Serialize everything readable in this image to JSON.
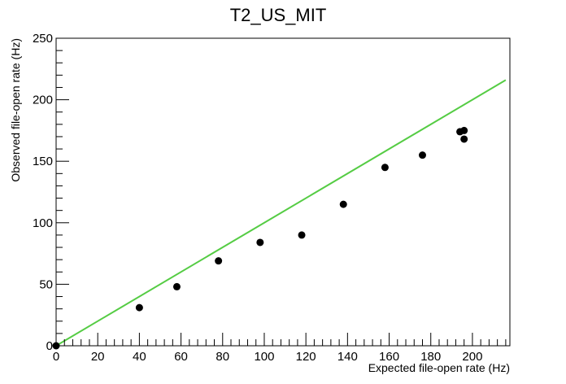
{
  "chart_data": {
    "type": "scatter",
    "title": "T2_US_MIT",
    "xlabel": "Expected file-open rate (Hz)",
    "ylabel": "Observed file-open rate (Hz)",
    "xlim": [
      0,
      218
    ],
    "ylim": [
      0,
      250
    ],
    "x_ticks": [
      0,
      20,
      40,
      60,
      80,
      100,
      120,
      140,
      160,
      180,
      200
    ],
    "y_ticks": [
      0,
      50,
      100,
      150,
      200,
      250
    ],
    "grid": false,
    "series": [
      {
        "marker_color": "#000000",
        "points": [
          {
            "x": 0,
            "y": 0
          },
          {
            "x": 40,
            "y": 31
          },
          {
            "x": 58,
            "y": 48
          },
          {
            "x": 78,
            "y": 69
          },
          {
            "x": 98,
            "y": 84
          },
          {
            "x": 118,
            "y": 90
          },
          {
            "x": 138,
            "y": 115
          },
          {
            "x": 158,
            "y": 145
          },
          {
            "x": 176,
            "y": 155
          },
          {
            "x": 194,
            "y": 174
          },
          {
            "x": 196,
            "y": 175
          },
          {
            "x": 196,
            "y": 168
          }
        ]
      }
    ],
    "reference_line": {
      "color": "#55cc44",
      "points": [
        {
          "x": 0,
          "y": 0
        },
        {
          "x": 216,
          "y": 216
        }
      ]
    }
  }
}
